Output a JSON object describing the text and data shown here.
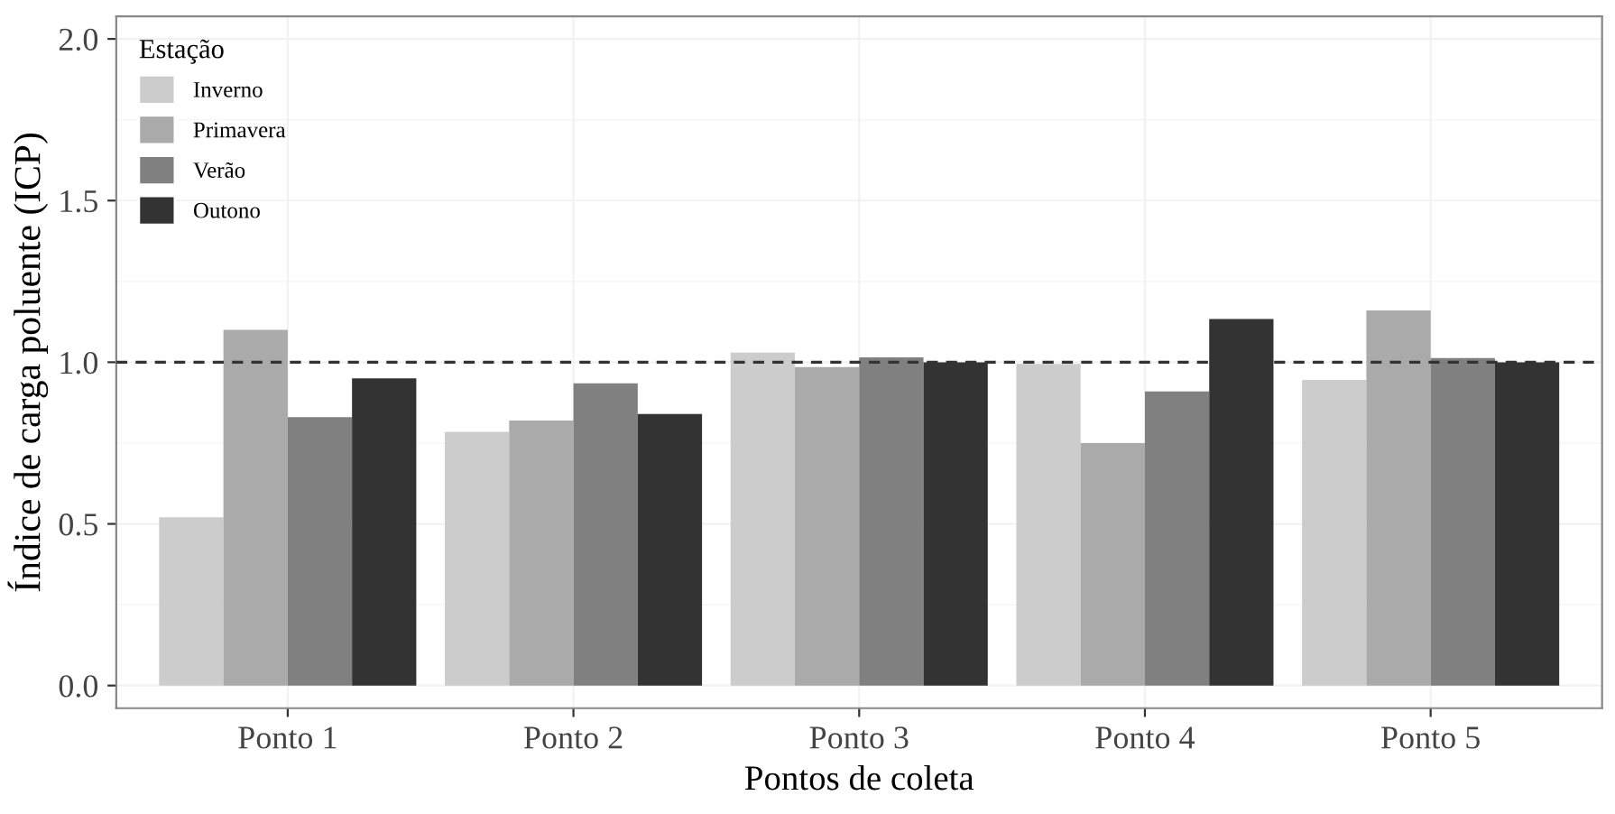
{
  "chart_data": {
    "type": "bar",
    "xlabel": "Pontos de coleta",
    "ylabel": "Índice de carga poluente (ICP)",
    "legend_title": "Estação",
    "categories": [
      "Ponto 1",
      "Ponto 2",
      "Ponto 3",
      "Ponto 4",
      "Ponto 5"
    ],
    "series": [
      {
        "name": "Inverno",
        "color": "#cccccc",
        "values": [
          0.52,
          0.785,
          1.03,
          0.995,
          0.945
        ]
      },
      {
        "name": "Primavera",
        "color": "#aaaaaa",
        "values": [
          1.1,
          0.82,
          0.985,
          0.75,
          1.16
        ]
      },
      {
        "name": "Verão",
        "color": "#808080",
        "values": [
          0.83,
          0.935,
          1.015,
          0.91,
          1.013
        ]
      },
      {
        "name": "Outono",
        "color": "#333333",
        "values": [
          0.95,
          0.84,
          1.0,
          1.134,
          1.0
        ]
      }
    ],
    "ylim": [
      -0.07,
      2.07
    ],
    "yticks": [
      {
        "value": 0,
        "label": "0.0"
      },
      {
        "value": 0.5,
        "label": "0.5"
      },
      {
        "value": 1,
        "label": "1.0"
      },
      {
        "value": 1.5,
        "label": "1.5"
      },
      {
        "value": 2,
        "label": "2.0"
      }
    ],
    "ref_lines": [
      {
        "axis": "y",
        "value": 1.0,
        "color": "#333333",
        "line_style": "dashed"
      }
    ],
    "grid": true,
    "legend": "top left"
  }
}
